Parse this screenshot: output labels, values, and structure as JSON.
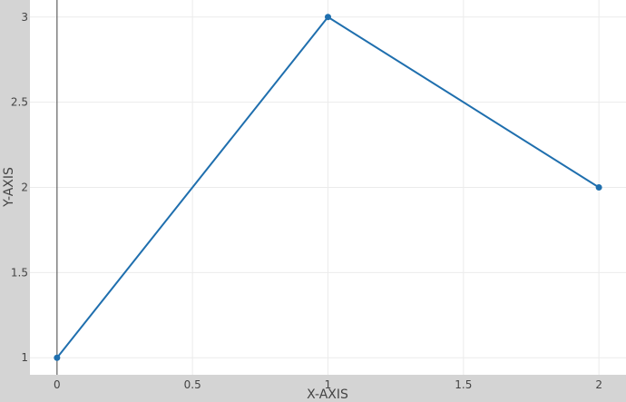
{
  "chart_data": {
    "type": "line",
    "title": "",
    "xlabel": "X-AXIS",
    "ylabel": "Y-AXIS",
    "x": [
      0,
      1,
      2
    ],
    "series": [
      {
        "values": [
          1,
          3,
          2
        ]
      }
    ],
    "xlim": [
      -0.1,
      2.1
    ],
    "ylim": [
      0.9,
      3.1
    ],
    "xticks": [
      0,
      0.5,
      1,
      1.5,
      2
    ],
    "xtick_labels": [
      "0",
      "0.5",
      "1",
      "1.5",
      "2"
    ],
    "yticks": [
      1,
      1.5,
      2,
      2.5,
      3
    ],
    "ytick_labels": [
      "1",
      "1.5",
      "2",
      "2.5",
      "3"
    ],
    "grid": true,
    "markers": true,
    "colors": {
      "line": "#1f6fae",
      "plot_background": "#ffffff",
      "paper_background": "#d4d4d4",
      "grid": "#ebebeb",
      "zero_line": "#444444"
    }
  }
}
